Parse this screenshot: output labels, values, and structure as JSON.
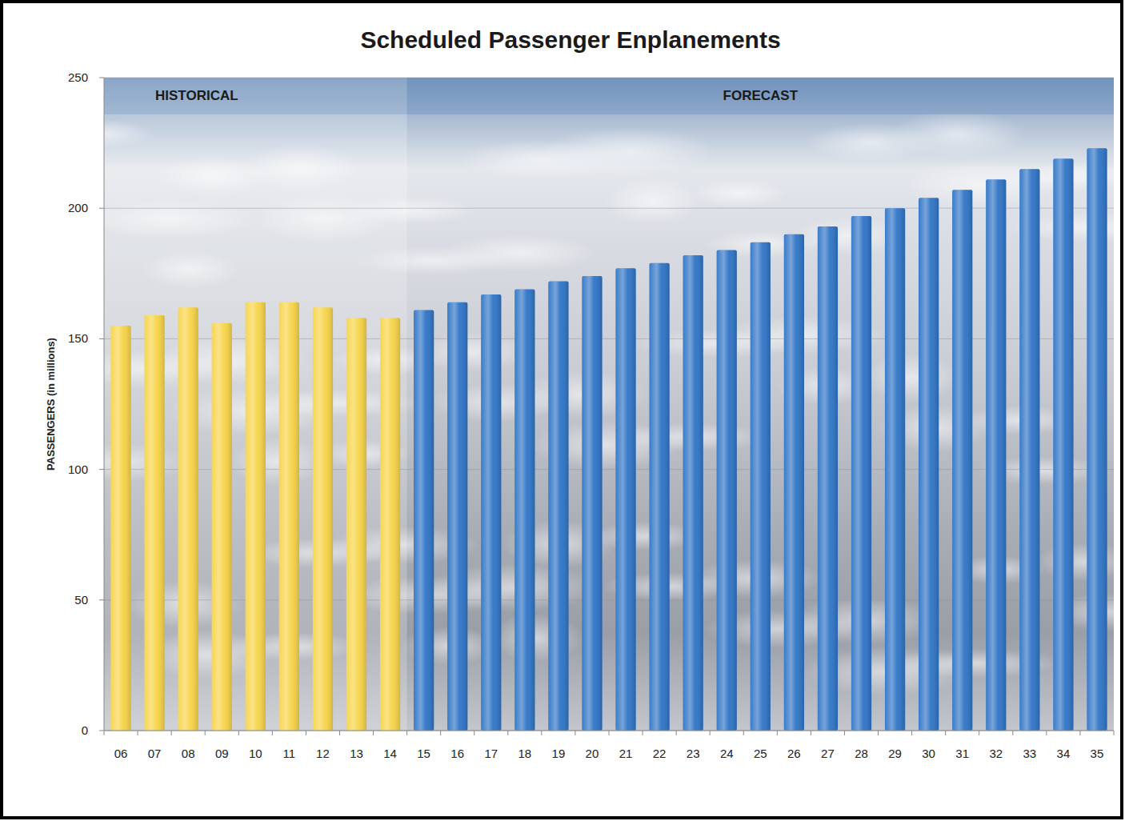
{
  "chart_data": {
    "type": "bar",
    "title": "Scheduled Passenger Enplanements",
    "y_label": "PASSENGERS (in millions)",
    "categories": [
      "06",
      "07",
      "08",
      "09",
      "10",
      "11",
      "12",
      "13",
      "14",
      "15",
      "16",
      "17",
      "18",
      "19",
      "20",
      "21",
      "22",
      "23",
      "24",
      "25",
      "26",
      "27",
      "28",
      "29",
      "30",
      "31",
      "32",
      "33",
      "34",
      "35"
    ],
    "values": [
      155,
      159,
      162,
      156,
      164,
      164,
      162,
      158,
      158,
      161,
      164,
      167,
      169,
      172,
      174,
      177,
      179,
      182,
      184,
      187,
      190,
      193,
      197,
      200,
      204,
      207,
      211,
      215,
      219,
      223
    ],
    "colors": [
      "#f7d448",
      "#f7d448",
      "#f7d448",
      "#f7d448",
      "#f7d448",
      "#f7d448",
      "#f7d448",
      "#f7d448",
      "#f7d448",
      "#2f74c6",
      "#2f74c6",
      "#2f74c6",
      "#2f74c6",
      "#2f74c6",
      "#2f74c6",
      "#2f74c6",
      "#2f74c6",
      "#2f74c6",
      "#2f74c6",
      "#2f74c6",
      "#2f74c6",
      "#2f74c6",
      "#2f74c6",
      "#2f74c6",
      "#2f74c6",
      "#2f74c6",
      "#2f74c6",
      "#2f74c6",
      "#2f74c6",
      "#2f74c6"
    ],
    "annotations": [
      {
        "text": "HISTORICAL",
        "from": "06",
        "to": "14"
      },
      {
        "text": "FORECAST",
        "from": "15",
        "to": "35"
      }
    ],
    "ylim": [
      0,
      250
    ],
    "yticks": [
      0,
      50,
      100,
      150,
      200,
      250
    ],
    "grid": true
  }
}
